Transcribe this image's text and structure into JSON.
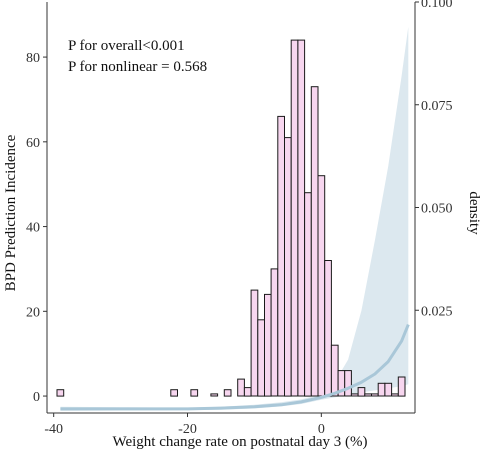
{
  "chart_data": {
    "type": "bar",
    "subtype": "histogram-with-restricted-cubic-spline",
    "xlabel": "Weight change rate on postnatal day 3 (%)",
    "ylabel": "BPD Prediction Incidence",
    "y2label": "density",
    "xlim": [
      -41,
      14
    ],
    "ylim": [
      -4,
      93
    ],
    "y2lim": [
      0,
      0.1
    ],
    "x_ticks": [
      -40,
      -20,
      0
    ],
    "y_ticks": [
      0,
      20,
      40,
      60,
      80
    ],
    "y2_ticks": [
      0.025,
      0.05,
      0.075,
      0.1
    ],
    "y2_tick_labels": [
      "0.025",
      "0.050",
      "0.075",
      "0.100"
    ],
    "annotations": [
      "P for overall<0.001",
      "P for nonlinear = 0.568"
    ],
    "histogram": {
      "bins": [
        {
          "x0": -39.5,
          "x1": -38.5,
          "count": 1.5
        },
        {
          "x0": -22.5,
          "x1": -21.5,
          "count": 1.5
        },
        {
          "x0": -19.5,
          "x1": -18.5,
          "count": 1.5
        },
        {
          "x0": -16.5,
          "x1": -15.5,
          "count": 0.5
        },
        {
          "x0": -14.5,
          "x1": -13.5,
          "count": 1.5
        },
        {
          "x0": -12.5,
          "x1": -11.5,
          "count": 4
        },
        {
          "x0": -11.5,
          "x1": -10.5,
          "count": 2
        },
        {
          "x0": -10.5,
          "x1": -9.5,
          "count": 25
        },
        {
          "x0": -9.5,
          "x1": -8.5,
          "count": 18
        },
        {
          "x0": -8.5,
          "x1": -7.5,
          "count": 24
        },
        {
          "x0": -7.5,
          "x1": -6.5,
          "count": 30
        },
        {
          "x0": -6.5,
          "x1": -5.5,
          "count": 66
        },
        {
          "x0": -5.5,
          "x1": -4.5,
          "count": 61
        },
        {
          "x0": -4.5,
          "x1": -3.5,
          "count": 84
        },
        {
          "x0": -3.5,
          "x1": -2.5,
          "count": 84
        },
        {
          "x0": -2.5,
          "x1": -1.5,
          "count": 48
        },
        {
          "x0": -1.5,
          "x1": -0.5,
          "count": 73
        },
        {
          "x0": -0.5,
          "x1": 0.5,
          "count": 52
        },
        {
          "x0": 0.5,
          "x1": 1.5,
          "count": 32
        },
        {
          "x0": 1.5,
          "x1": 2.5,
          "count": 12
        },
        {
          "x0": 2.5,
          "x1": 3.5,
          "count": 6
        },
        {
          "x0": 3.5,
          "x1": 4.5,
          "count": 6
        },
        {
          "x0": 4.5,
          "x1": 5.5,
          "count": 0.5
        },
        {
          "x0": 5.5,
          "x1": 6.5,
          "count": 2
        },
        {
          "x0": 6.5,
          "x1": 7.5,
          "count": 0.5
        },
        {
          "x0": 7.5,
          "x1": 8.5,
          "count": 0.5
        },
        {
          "x0": 8.5,
          "x1": 9.5,
          "count": 3
        },
        {
          "x0": 9.5,
          "x1": 10.5,
          "count": 3
        },
        {
          "x0": 10.5,
          "x1": 11.5,
          "count": 0.5
        },
        {
          "x0": 11.5,
          "x1": 12.5,
          "count": 4.5
        }
      ]
    },
    "spline": {
      "x": [
        -39,
        -30,
        -20,
        -15,
        -10,
        -6,
        -3,
        0,
        2,
        4,
        6,
        8,
        10,
        12,
        13
      ],
      "y": [
        0.001,
        0.001,
        0.001,
        0.0012,
        0.0015,
        0.002,
        0.0027,
        0.0038,
        0.0048,
        0.006,
        0.0075,
        0.0095,
        0.0125,
        0.0175,
        0.0215
      ],
      "lower": [
        0.0005,
        0.0006,
        0.0007,
        0.0008,
        0.0011,
        0.0016,
        0.0022,
        0.0032,
        0.0038,
        0.0044,
        0.005,
        0.0055,
        0.006,
        0.0065,
        0.007
      ],
      "upper": [
        0.0015,
        0.0014,
        0.0013,
        0.0015,
        0.002,
        0.0026,
        0.0033,
        0.0045,
        0.0075,
        0.013,
        0.025,
        0.042,
        0.06,
        0.082,
        0.094
      ]
    },
    "colors": {
      "bar_fill": "#f7d6ef",
      "bar_stroke": "#1a1a1a",
      "ribbon": "#dce8ef",
      "line": "#a9c7d8",
      "axis": "#333333"
    }
  }
}
